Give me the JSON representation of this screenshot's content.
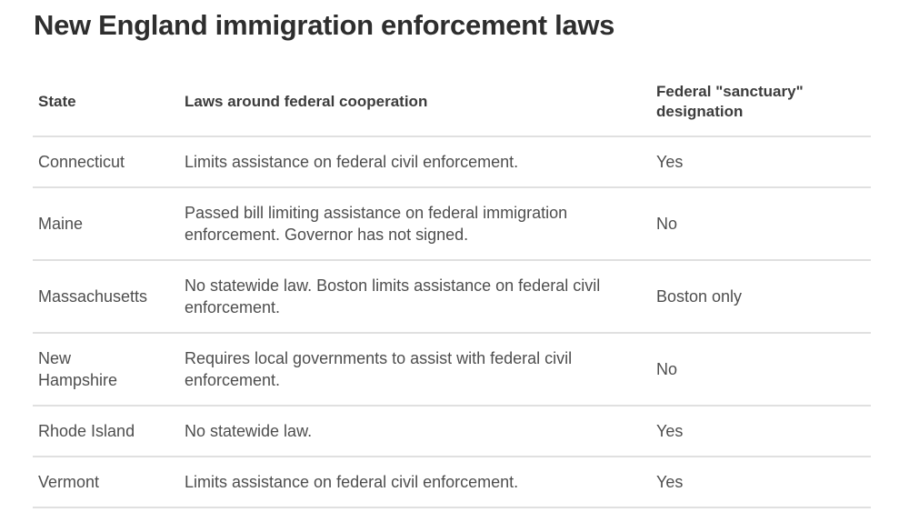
{
  "title": "New England immigration enforcement laws",
  "table": {
    "headers": [
      {
        "label": "State"
      },
      {
        "label": "Laws around federal cooperation"
      },
      {
        "label": "Federal \"sanctuary\" designation"
      }
    ],
    "rows": [
      {
        "state": "Connecticut",
        "laws": "Limits assistance on federal civil enforcement.",
        "designation": "Yes"
      },
      {
        "state": "Maine",
        "laws": "Passed bill limiting assistance on federal immigration enforcement. Governor has not signed.",
        "designation": "No"
      },
      {
        "state": "Massachusetts",
        "laws": "No statewide law. Boston limits assistance on federal civil enforcement.",
        "designation": "Boston only"
      },
      {
        "state": "New Hampshire",
        "laws": "Requires local governments to assist with federal civil enforcement.",
        "designation": "No"
      },
      {
        "state": "Rhode Island",
        "laws": "No statewide law.",
        "designation": "Yes"
      },
      {
        "state": "Vermont",
        "laws": "Limits assistance on federal civil enforcement.",
        "designation": "Yes"
      }
    ]
  },
  "colors": {
    "background": "#ffffff",
    "title_text": "#2e2e2e",
    "header_text": "#3c3c3c",
    "body_text": "#4e4e4e",
    "divider": "#e0e0e0"
  },
  "chart_data": {
    "type": "table",
    "title": "New England immigration enforcement laws",
    "columns": [
      "State",
      "Laws around federal cooperation",
      "Federal \"sanctuary\" designation"
    ],
    "rows": [
      [
        "Connecticut",
        "Limits assistance on federal civil enforcement.",
        "Yes"
      ],
      [
        "Maine",
        "Passed bill limiting assistance on federal immigration enforcement. Governor has not signed.",
        "No"
      ],
      [
        "Massachusetts",
        "No statewide law. Boston limits assistance on federal civil enforcement.",
        "Boston only"
      ],
      [
        "New Hampshire",
        "Requires local governments to assist with federal civil enforcement.",
        "No"
      ],
      [
        "Rhode Island",
        "No statewide law.",
        "Yes"
      ],
      [
        "Vermont",
        "Limits assistance on federal civil enforcement.",
        "Yes"
      ]
    ],
    "layout_hints": {
      "header_row_bold": true,
      "row_dividers": true,
      "grid": "horizontal-only",
      "alignment": "left"
    }
  }
}
